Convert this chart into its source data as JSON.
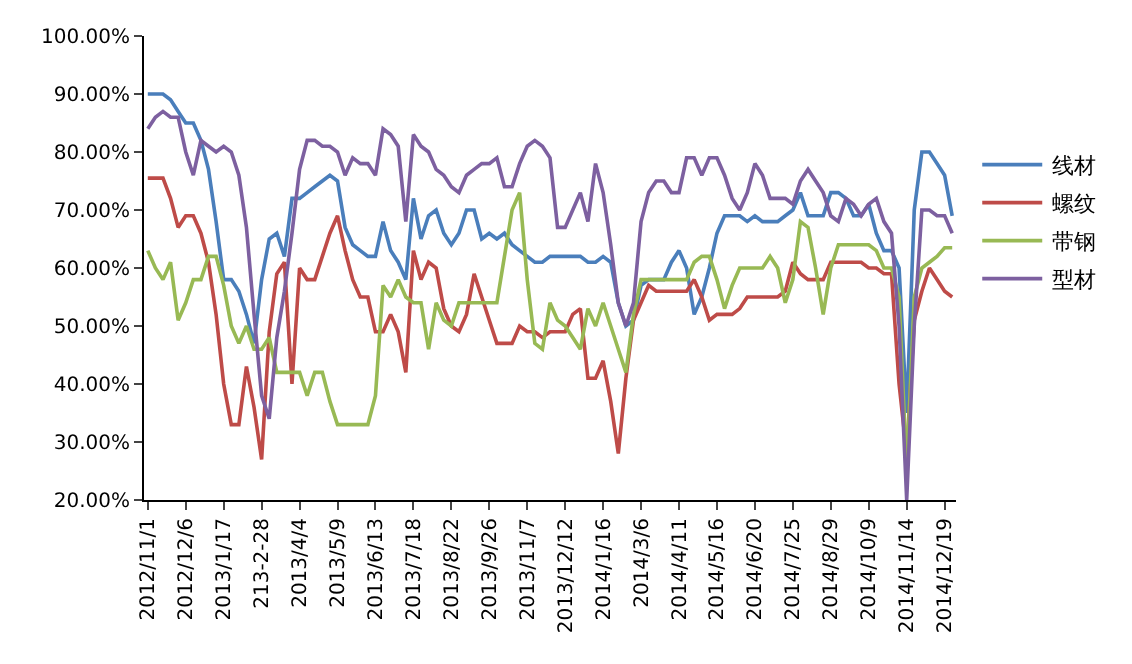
{
  "chart_data": {
    "type": "line",
    "categories": [
      "2012/11/1",
      null,
      null,
      null,
      null,
      "2012/12/6",
      null,
      null,
      null,
      null,
      "2013/1/17",
      null,
      null,
      null,
      null,
      "213-2-28",
      null,
      null,
      null,
      null,
      "2013/4/4",
      null,
      null,
      null,
      null,
      "2013/5/9",
      null,
      null,
      null,
      null,
      "2013/6/13",
      null,
      null,
      null,
      null,
      "2013/7/18",
      null,
      null,
      null,
      null,
      "2013/8/22",
      null,
      null,
      null,
      null,
      "2013/9/26",
      null,
      null,
      null,
      null,
      "2013/11/7",
      null,
      null,
      null,
      null,
      "2013/12/12",
      null,
      null,
      null,
      null,
      "2014/1/16",
      null,
      null,
      null,
      null,
      "2014/3/6",
      null,
      null,
      null,
      null,
      "2014/4/11",
      null,
      null,
      null,
      null,
      "2014/5/16",
      null,
      null,
      null,
      null,
      "2014/6/20",
      null,
      null,
      null,
      null,
      "2014/7/25",
      null,
      null,
      null,
      null,
      "2014/8/29",
      null,
      null,
      null,
      null,
      "2014/10/9",
      null,
      null,
      null,
      null,
      "2014/11/14",
      null,
      null,
      null,
      null,
      "2014/12/19",
      null
    ],
    "series": [
      {
        "name": "线材",
        "color": "#4a7ebb",
        "values": [
          90,
          90,
          90,
          89,
          87,
          85,
          85,
          82,
          77,
          68,
          58,
          58,
          56,
          52,
          47,
          58,
          65,
          66,
          62,
          72,
          72,
          73,
          74,
          75,
          76,
          75,
          67,
          64,
          63,
          62,
          62,
          68,
          63,
          61,
          58,
          72,
          65,
          69,
          70,
          66,
          64,
          66,
          70,
          70,
          65,
          66,
          65,
          66,
          64,
          63,
          62,
          61,
          61,
          62,
          62,
          62,
          62,
          62,
          61,
          61,
          62,
          61,
          54,
          50,
          51,
          57,
          58,
          58,
          58,
          61,
          63,
          60,
          52,
          55,
          60,
          66,
          69,
          69,
          69,
          68,
          69,
          68,
          68,
          68,
          69,
          70,
          73,
          69,
          69,
          69,
          73,
          73,
          72,
          69,
          69,
          71,
          66,
          63,
          63,
          60,
          35,
          70,
          80,
          80,
          78,
          76,
          69
        ]
      },
      {
        "name": "螺纹",
        "color": "#be4b48",
        "values": [
          75.5,
          75.5,
          75.5,
          72,
          67,
          69,
          69,
          66,
          61,
          52,
          40,
          33,
          33,
          43,
          36,
          27,
          49,
          59,
          61,
          40,
          60,
          58,
          58,
          62,
          66,
          69,
          63,
          58,
          55,
          55,
          49,
          49,
          52,
          49,
          42,
          63,
          58,
          61,
          60,
          53,
          50,
          49,
          52,
          59,
          55,
          51,
          47,
          47,
          47,
          50,
          49,
          49,
          48,
          49,
          49,
          49,
          52,
          53,
          41,
          41,
          44,
          37,
          28,
          41,
          51,
          54,
          57,
          56,
          56,
          56,
          56,
          56,
          58,
          55,
          51,
          52,
          52,
          52,
          53,
          55,
          55,
          55,
          55,
          55,
          56,
          61,
          59,
          58,
          58,
          58,
          61,
          61,
          61,
          61,
          61,
          60,
          60,
          59,
          59,
          40,
          28,
          51,
          56,
          60,
          58,
          56,
          55
        ]
      },
      {
        "name": "带钢",
        "color": "#98b954",
        "values": [
          63,
          60,
          58,
          61,
          51,
          54,
          58,
          58,
          62,
          62,
          57,
          50,
          47,
          50,
          46,
          46,
          48,
          42,
          42,
          42,
          42,
          38,
          42,
          42,
          37,
          33,
          33,
          33,
          33,
          33,
          38,
          57,
          55,
          58,
          55,
          54,
          54,
          46,
          54,
          51,
          50,
          54,
          54,
          54,
          54,
          54,
          54,
          62,
          70,
          73,
          58,
          47,
          46,
          54,
          51,
          50,
          48,
          46,
          53,
          50,
          54,
          50,
          46,
          42,
          52,
          58,
          58,
          58,
          58,
          58,
          58,
          58,
          61,
          62,
          62,
          58,
          53,
          57,
          60,
          60,
          60,
          60,
          62,
          60,
          54,
          58,
          68,
          67,
          60,
          52,
          60,
          64,
          64,
          64,
          64,
          64,
          63,
          60,
          60,
          55,
          25,
          55,
          60,
          61,
          62,
          63.5,
          63.5
        ]
      },
      {
        "name": "型材",
        "color": "#7d60a0",
        "values": [
          84,
          86,
          87,
          86,
          86,
          80,
          76,
          82,
          81,
          80,
          81,
          80,
          76,
          67,
          52,
          38,
          34,
          48,
          56,
          66,
          77,
          82,
          82,
          81,
          81,
          80,
          76,
          79,
          78,
          78,
          76,
          84,
          83,
          81,
          68,
          83,
          81,
          80,
          77,
          76,
          74,
          73,
          76,
          77,
          78,
          78,
          79,
          74,
          74,
          78,
          81,
          82,
          81,
          79,
          67,
          67,
          70,
          73,
          68,
          78,
          73,
          64,
          54,
          50,
          54,
          68,
          73,
          75,
          75,
          73,
          73,
          79,
          79,
          76,
          79,
          79,
          76,
          72,
          70,
          73,
          78,
          76,
          72,
          72,
          72,
          71,
          75,
          77,
          75,
          73,
          69,
          68,
          72,
          71,
          69,
          71,
          72,
          68,
          66,
          50,
          20,
          50,
          70,
          70,
          69,
          69,
          66
        ]
      }
    ],
    "ylim": [
      20,
      100
    ],
    "yticks": [
      {
        "value": 20,
        "label": "20.00%"
      },
      {
        "value": 30,
        "label": "30.00%"
      },
      {
        "value": 40,
        "label": "40.00%"
      },
      {
        "value": 50,
        "label": "50.00%"
      },
      {
        "value": 60,
        "label": "60.00%"
      },
      {
        "value": 70,
        "label": "70.00%"
      },
      {
        "value": 80,
        "label": "80.00%"
      },
      {
        "value": 90,
        "label": "90.00%"
      },
      {
        "value": 100,
        "label": "100.00%"
      }
    ],
    "legend": "right",
    "marker": "none",
    "line_style": "solid"
  }
}
